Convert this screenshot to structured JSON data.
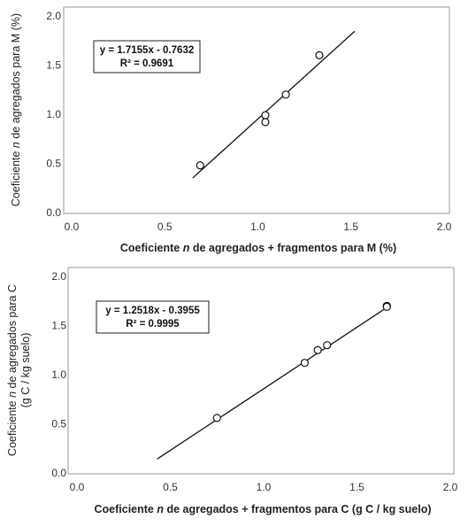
{
  "chart_data": [
    {
      "type": "scatter",
      "title": "",
      "xlabel": "Coeficiente n de agregados + fragmentos para M (%)",
      "xlabel_parts": [
        "Coeficiente ",
        "n",
        " de agregados + fragmentos para M (%)"
      ],
      "ylabel_lines": [
        [
          "Coeficiente ",
          "n",
          " de agregados para M (%)"
        ]
      ],
      "xlim": [
        0,
        2
      ],
      "ylim": [
        0,
        2
      ],
      "x_ticks": [
        "0.0",
        "0.5",
        "1.0",
        "1.5",
        "2.0"
      ],
      "y_ticks": [
        "0.0",
        "0.5",
        "1.0",
        "1.5",
        "2.0"
      ],
      "points": [
        {
          "x": 0.69,
          "y": 0.48
        },
        {
          "x": 1.04,
          "y": 0.99
        },
        {
          "x": 1.04,
          "y": 0.92
        },
        {
          "x": 1.15,
          "y": 1.2
        },
        {
          "x": 1.33,
          "y": 1.6
        }
      ],
      "trendline": {
        "slope": 1.7155,
        "intercept": -0.7632,
        "x_range": [
          0.65,
          1.52
        ]
      },
      "equation": "y = 1.7155x - 0.7632",
      "r_squared": "R² = 0.9691",
      "grid": false
    },
    {
      "type": "scatter",
      "title": "",
      "xlabel": "Coeficiente n de agregados + fragmentos para C (g C / kg suelo)",
      "xlabel_parts": [
        "Coeficiente ",
        "n",
        " de agregados + fragmentos para C (g C / kg suelo)"
      ],
      "ylabel_lines": [
        [
          "Coeficiente ",
          "n",
          " de agregados para C"
        ],
        [
          "(g C / kg suelo)"
        ]
      ],
      "xlim": [
        0,
        2
      ],
      "ylim": [
        0,
        2
      ],
      "x_ticks": [
        "0.0",
        "0.5",
        "1.0",
        "1.5",
        "2.0"
      ],
      "y_ticks": [
        "0.0",
        "0.5",
        "1.0",
        "1.5",
        "2.0"
      ],
      "points": [
        {
          "x": 0.75,
          "y": 0.56
        },
        {
          "x": 1.22,
          "y": 1.12
        },
        {
          "x": 1.29,
          "y": 1.25
        },
        {
          "x": 1.34,
          "y": 1.3
        },
        {
          "x": 1.66,
          "y": 1.7
        },
        {
          "x": 1.66,
          "y": 1.69
        }
      ],
      "trendline": {
        "slope": 1.2518,
        "intercept": -0.3955,
        "x_range": [
          0.43,
          1.67
        ]
      },
      "equation": "y = 1.2518x - 0.3955",
      "r_squared": "R² = 0.9995",
      "grid": false
    }
  ]
}
